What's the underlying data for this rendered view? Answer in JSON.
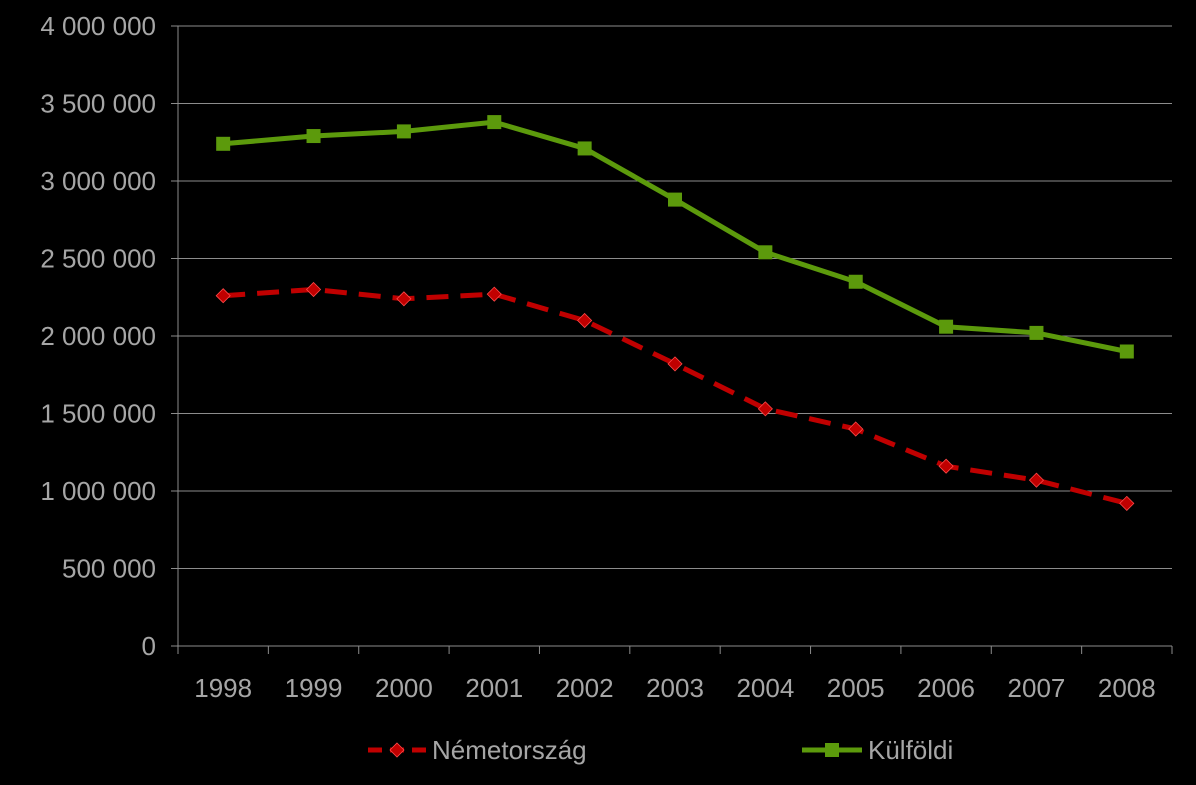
{
  "chart_data": {
    "type": "line",
    "title": "",
    "xlabel": "",
    "ylabel": "",
    "categories": [
      "1998",
      "1999",
      "2000",
      "2001",
      "2002",
      "2003",
      "2004",
      "2005",
      "2006",
      "2007",
      "2008"
    ],
    "ylim": [
      0,
      4000000
    ],
    "y_ticks": [
      0,
      500000,
      1000000,
      1500000,
      2000000,
      2500000,
      3000000,
      3500000,
      4000000
    ],
    "y_tick_labels": [
      "0",
      "500 000",
      "1 000 000",
      "1 500 000",
      "2 000 000",
      "2 500 000",
      "3 000 000",
      "3 500 000",
      "4 000 000"
    ],
    "grid": true,
    "legend_position": "bottom",
    "series": [
      {
        "name": "Németország",
        "color": "#c00000",
        "marker": "diamond",
        "line_style": "dashed",
        "values": [
          2260000,
          2300000,
          2240000,
          2270000,
          2100000,
          1820000,
          1530000,
          1400000,
          1160000,
          1070000,
          920000
        ]
      },
      {
        "name": "Külföldi",
        "color": "#5c9a0c",
        "marker": "square",
        "line_style": "solid",
        "values": [
          3240000,
          3290000,
          3320000,
          3380000,
          3210000,
          2880000,
          2540000,
          2350000,
          2060000,
          2020000,
          1900000
        ]
      }
    ]
  }
}
